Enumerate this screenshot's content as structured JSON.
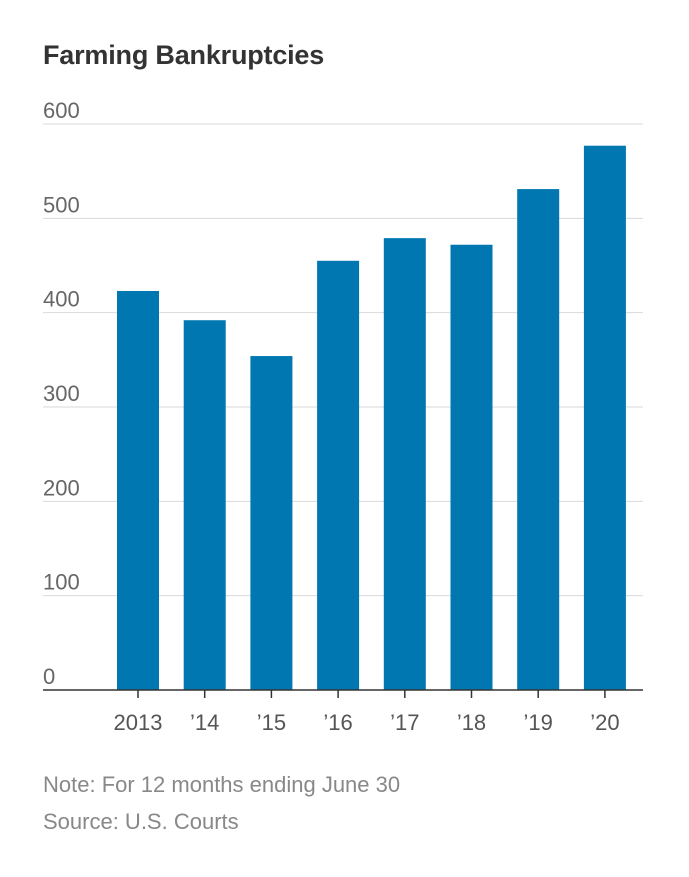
{
  "chart_data": {
    "type": "bar",
    "title": "Farming Bankruptcies",
    "categories": [
      "2013",
      "’14",
      "’15",
      "’16",
      "’17",
      "’18",
      "’19",
      "’20"
    ],
    "values": [
      423,
      392,
      354,
      455,
      479,
      472,
      531,
      577
    ],
    "yticks": [
      0,
      100,
      200,
      300,
      400,
      500,
      600
    ],
    "ylim": [
      0,
      600
    ],
    "grid": true,
    "bar_color": "#0077b0",
    "note": "Note: For 12 months ending June 30",
    "source": "Source: U.S. Courts"
  }
}
